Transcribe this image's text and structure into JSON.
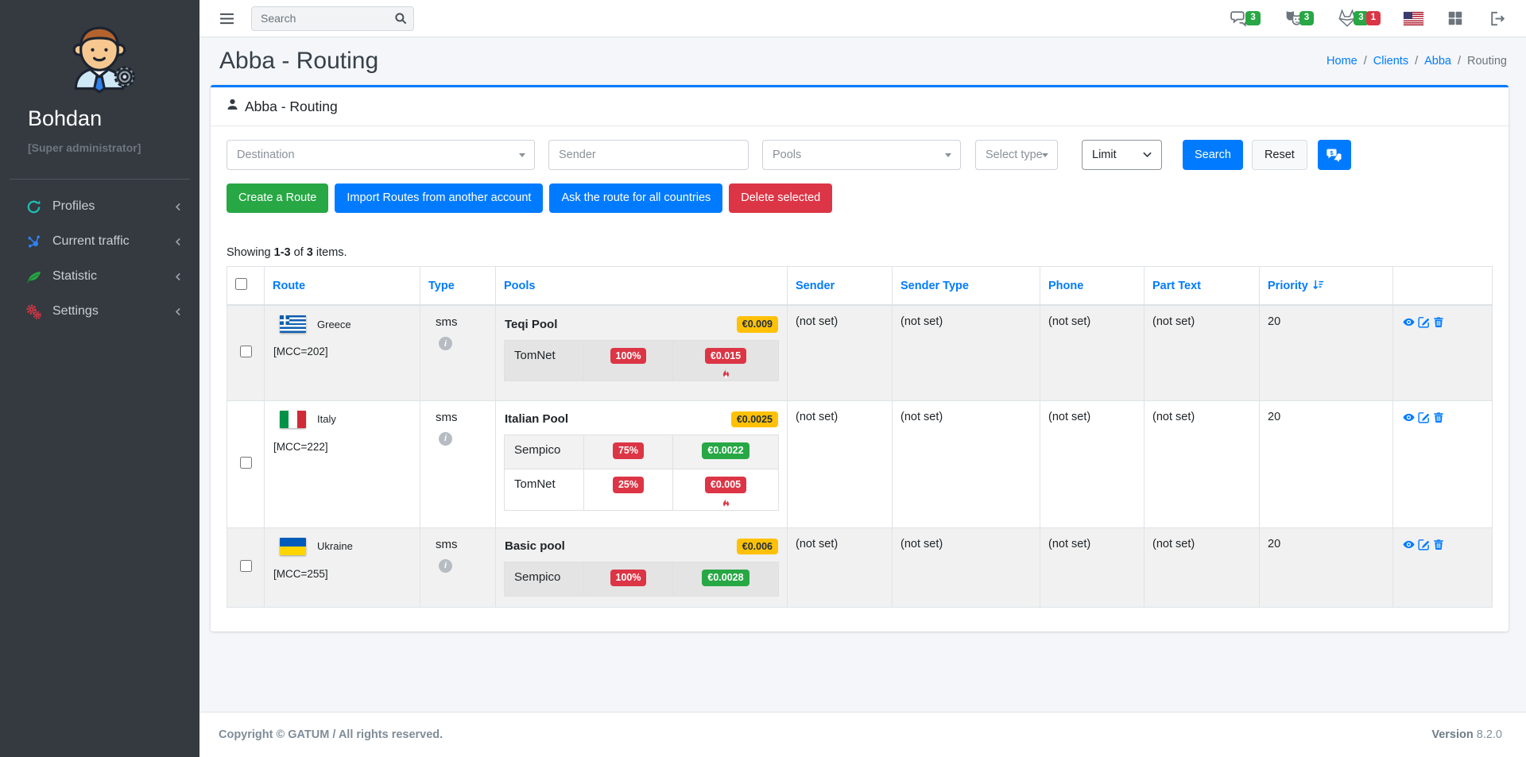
{
  "topbar": {
    "search_placeholder": "Search",
    "badges": {
      "chats": "3",
      "tickets": "3",
      "fox_green": "3",
      "fox_red": "1"
    }
  },
  "sidebar": {
    "user_name": "Bohdan",
    "user_role": "[Super administrator]",
    "items": [
      {
        "label": "Profiles"
      },
      {
        "label": "Current traffic"
      },
      {
        "label": "Statistic"
      },
      {
        "label": "Settings"
      }
    ]
  },
  "page": {
    "title": "Abba - Routing",
    "breadcrumb": [
      {
        "label": "Home"
      },
      {
        "label": "Clients"
      },
      {
        "label": "Abba"
      },
      {
        "label": "Routing"
      }
    ]
  },
  "card": {
    "title": "Abba - Routing",
    "filters": {
      "destination_placeholder": "Destination",
      "sender_placeholder": "Sender",
      "pools_placeholder": "Pools",
      "type_placeholder": "Select type",
      "limit_label": "Limit",
      "search_label": "Search",
      "reset_label": "Reset"
    },
    "actions": [
      {
        "label": "Create a Route",
        "style": "green"
      },
      {
        "label": "Import Routes from another account",
        "style": "blue"
      },
      {
        "label": "Ask the route for all countries",
        "style": "blue"
      },
      {
        "label": "Delete selected",
        "style": "red"
      }
    ],
    "summary": {
      "prefix": "Showing",
      "range": "1-3",
      "of": "of",
      "total": "3",
      "suffix": "items."
    }
  },
  "table": {
    "headers": [
      "Route",
      "Type",
      "Pools",
      "Sender",
      "Sender Type",
      "Phone",
      "Part Text",
      "Priority"
    ],
    "rows": [
      {
        "flag": "gr",
        "country": "Greece",
        "mcc": "[MCC=202]",
        "type": "sms",
        "pool": {
          "name": "Teqi Pool",
          "price": "€0.009",
          "routes": [
            {
              "name": "TomNet",
              "percent": "100%",
              "price": "€0.015",
              "price_color": "red",
              "flame": true
            }
          ]
        },
        "sender": "(not set)",
        "sender_type": "(not set)",
        "phone": "(not set)",
        "part_text": "(not set)",
        "priority": "20"
      },
      {
        "flag": "it",
        "country": "Italy",
        "mcc": "[MCC=222]",
        "type": "sms",
        "pool": {
          "name": "Italian Pool",
          "price": "€0.0025",
          "routes": [
            {
              "name": "Sempico",
              "percent": "75%",
              "price": "€0.0022",
              "price_color": "green",
              "flame": false
            },
            {
              "name": "TomNet",
              "percent": "25%",
              "price": "€0.005",
              "price_color": "red",
              "flame": true
            }
          ]
        },
        "sender": "(not set)",
        "sender_type": "(not set)",
        "phone": "(not set)",
        "part_text": "(not set)",
        "priority": "20"
      },
      {
        "flag": "ua",
        "country": "Ukraine",
        "mcc": "[MCC=255]",
        "type": "sms",
        "pool": {
          "name": "Basic pool",
          "price": "€0.006",
          "routes": [
            {
              "name": "Sempico",
              "percent": "100%",
              "price": "€0.0028",
              "price_color": "green",
              "flame": false
            }
          ]
        },
        "sender": "(not set)",
        "sender_type": "(not set)",
        "phone": "(not set)",
        "part_text": "(not set)",
        "priority": "20"
      }
    ]
  },
  "footer": {
    "copyright": "Copyright © GATUM / All rights reserved.",
    "version_label": "Version",
    "version_value": "8.2.0"
  },
  "colors": {
    "primary": "#007bff",
    "success": "#28a745",
    "danger": "#dc3545",
    "warning": "#ffc107",
    "sidebar_bg": "#343a40",
    "body_bg": "#f4f6f9"
  }
}
